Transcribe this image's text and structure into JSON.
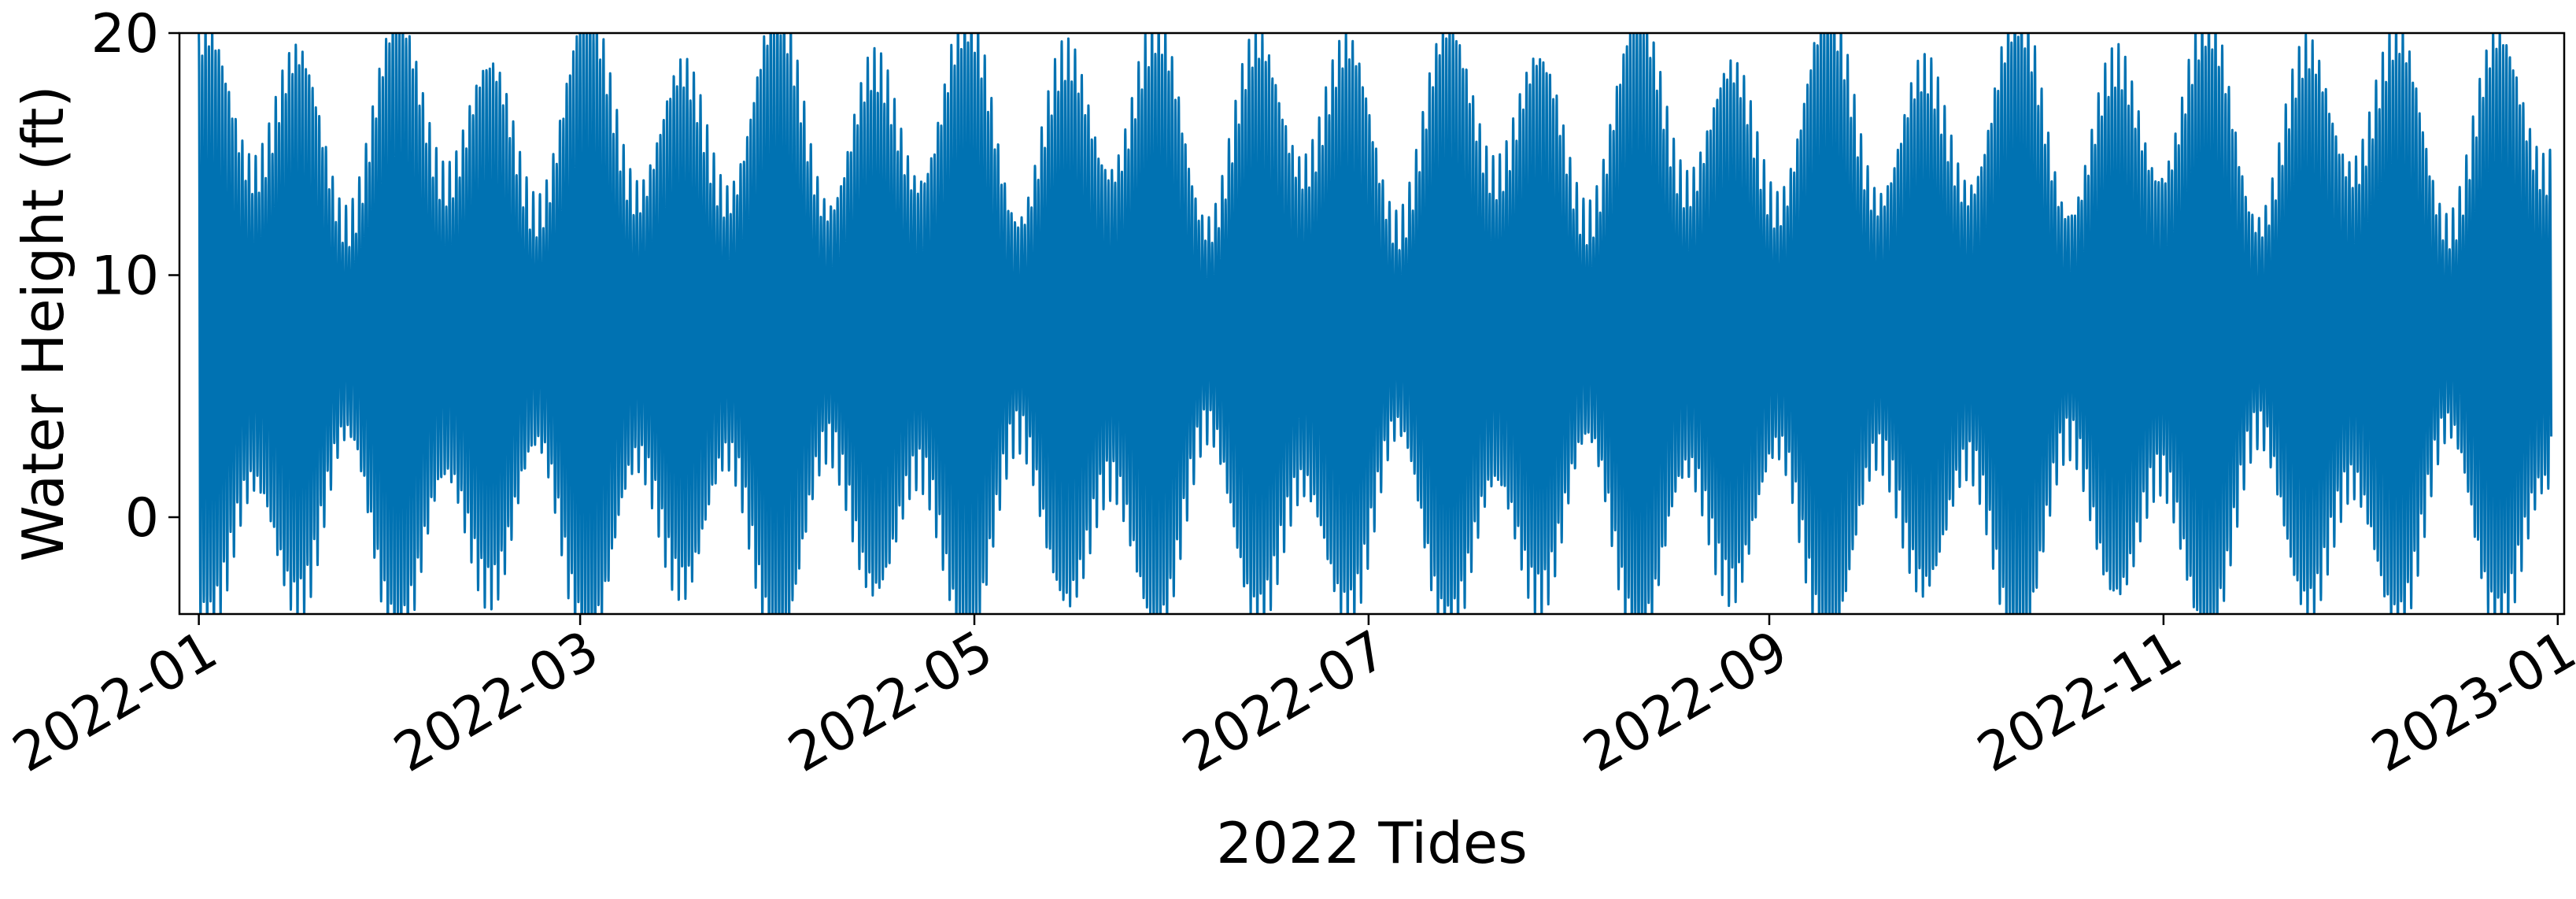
{
  "chart_data": {
    "type": "line",
    "title": "",
    "xlabel": "2022 Tides",
    "ylabel": "Water Height (ft)",
    "x_range": [
      "2022-01-01",
      "2022-12-31"
    ],
    "xlim": [
      "2021-12-29",
      "2023-01-02"
    ],
    "ylim": [
      -4,
      20
    ],
    "x_ticks": [
      "2022-01",
      "2022-03",
      "2022-05",
      "2022-07",
      "2022-09",
      "2022-11",
      "2023-01"
    ],
    "y_ticks": [
      0,
      10,
      20
    ],
    "grid": false,
    "legend": "none",
    "line_color": "#0072B2",
    "series": [
      {
        "values": {
          "mean_level": 7.8,
          "high_tide_peak_approx": 20,
          "low_tide_trough_approx": -4,
          "neap_range": [
            4,
            14
          ],
          "spring_range": [
            -4,
            20
          ]
        }
      }
    ]
  }
}
